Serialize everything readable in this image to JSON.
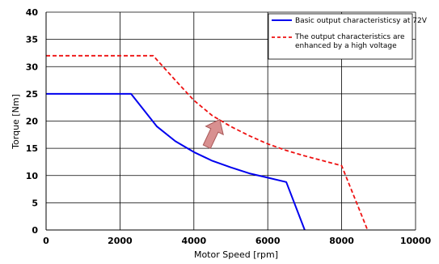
{
  "chart_data": {
    "type": "line",
    "title": "",
    "xlabel": "Motor Speed [rpm]",
    "ylabel": "Torque [Nm]",
    "xlim": [
      0,
      10000
    ],
    "ylim": [
      0,
      40
    ],
    "x_ticks": [
      0,
      2000,
      4000,
      6000,
      8000,
      10000
    ],
    "y_ticks": [
      0,
      5,
      10,
      15,
      20,
      25,
      30,
      35,
      40
    ],
    "x_tick_labels": [
      "0",
      "2000",
      "4000",
      "6000",
      "8000",
      "10000"
    ],
    "y_tick_labels": [
      "0",
      "5",
      "10",
      "15",
      "20",
      "25",
      "30",
      "35",
      "40"
    ],
    "grid": true,
    "legend_position": "top-right",
    "series": [
      {
        "name": "Basic output characteristicsy at 72V",
        "color": "#0000ee",
        "style": "solid",
        "points": [
          [
            0,
            25
          ],
          [
            2300,
            25
          ],
          [
            3000,
            19
          ],
          [
            3500,
            16.3
          ],
          [
            4000,
            14.3
          ],
          [
            4500,
            12.7
          ],
          [
            5000,
            11.5
          ],
          [
            5500,
            10.4
          ],
          [
            6000,
            9.6
          ],
          [
            6500,
            8.8
          ],
          [
            7000,
            0
          ]
        ]
      },
      {
        "name": "The output characteristics are enhanced by a high voltage",
        "color": "#ee1111",
        "style": "dashed",
        "points": [
          [
            0,
            32
          ],
          [
            2900,
            32
          ],
          [
            3500,
            27.5
          ],
          [
            4000,
            23.8
          ],
          [
            4500,
            21
          ],
          [
            5000,
            19
          ],
          [
            5500,
            17.3
          ],
          [
            6000,
            15.8
          ],
          [
            6500,
            14.6
          ],
          [
            7000,
            13.6
          ],
          [
            8000,
            11.8
          ],
          [
            8700,
            0
          ]
        ]
      }
    ],
    "annotation": {
      "type": "arrow",
      "color": "#d89090",
      "border_color": "#a85858",
      "from": [
        4350,
        15.3
      ],
      "to": [
        4700,
        20.3
      ]
    }
  }
}
